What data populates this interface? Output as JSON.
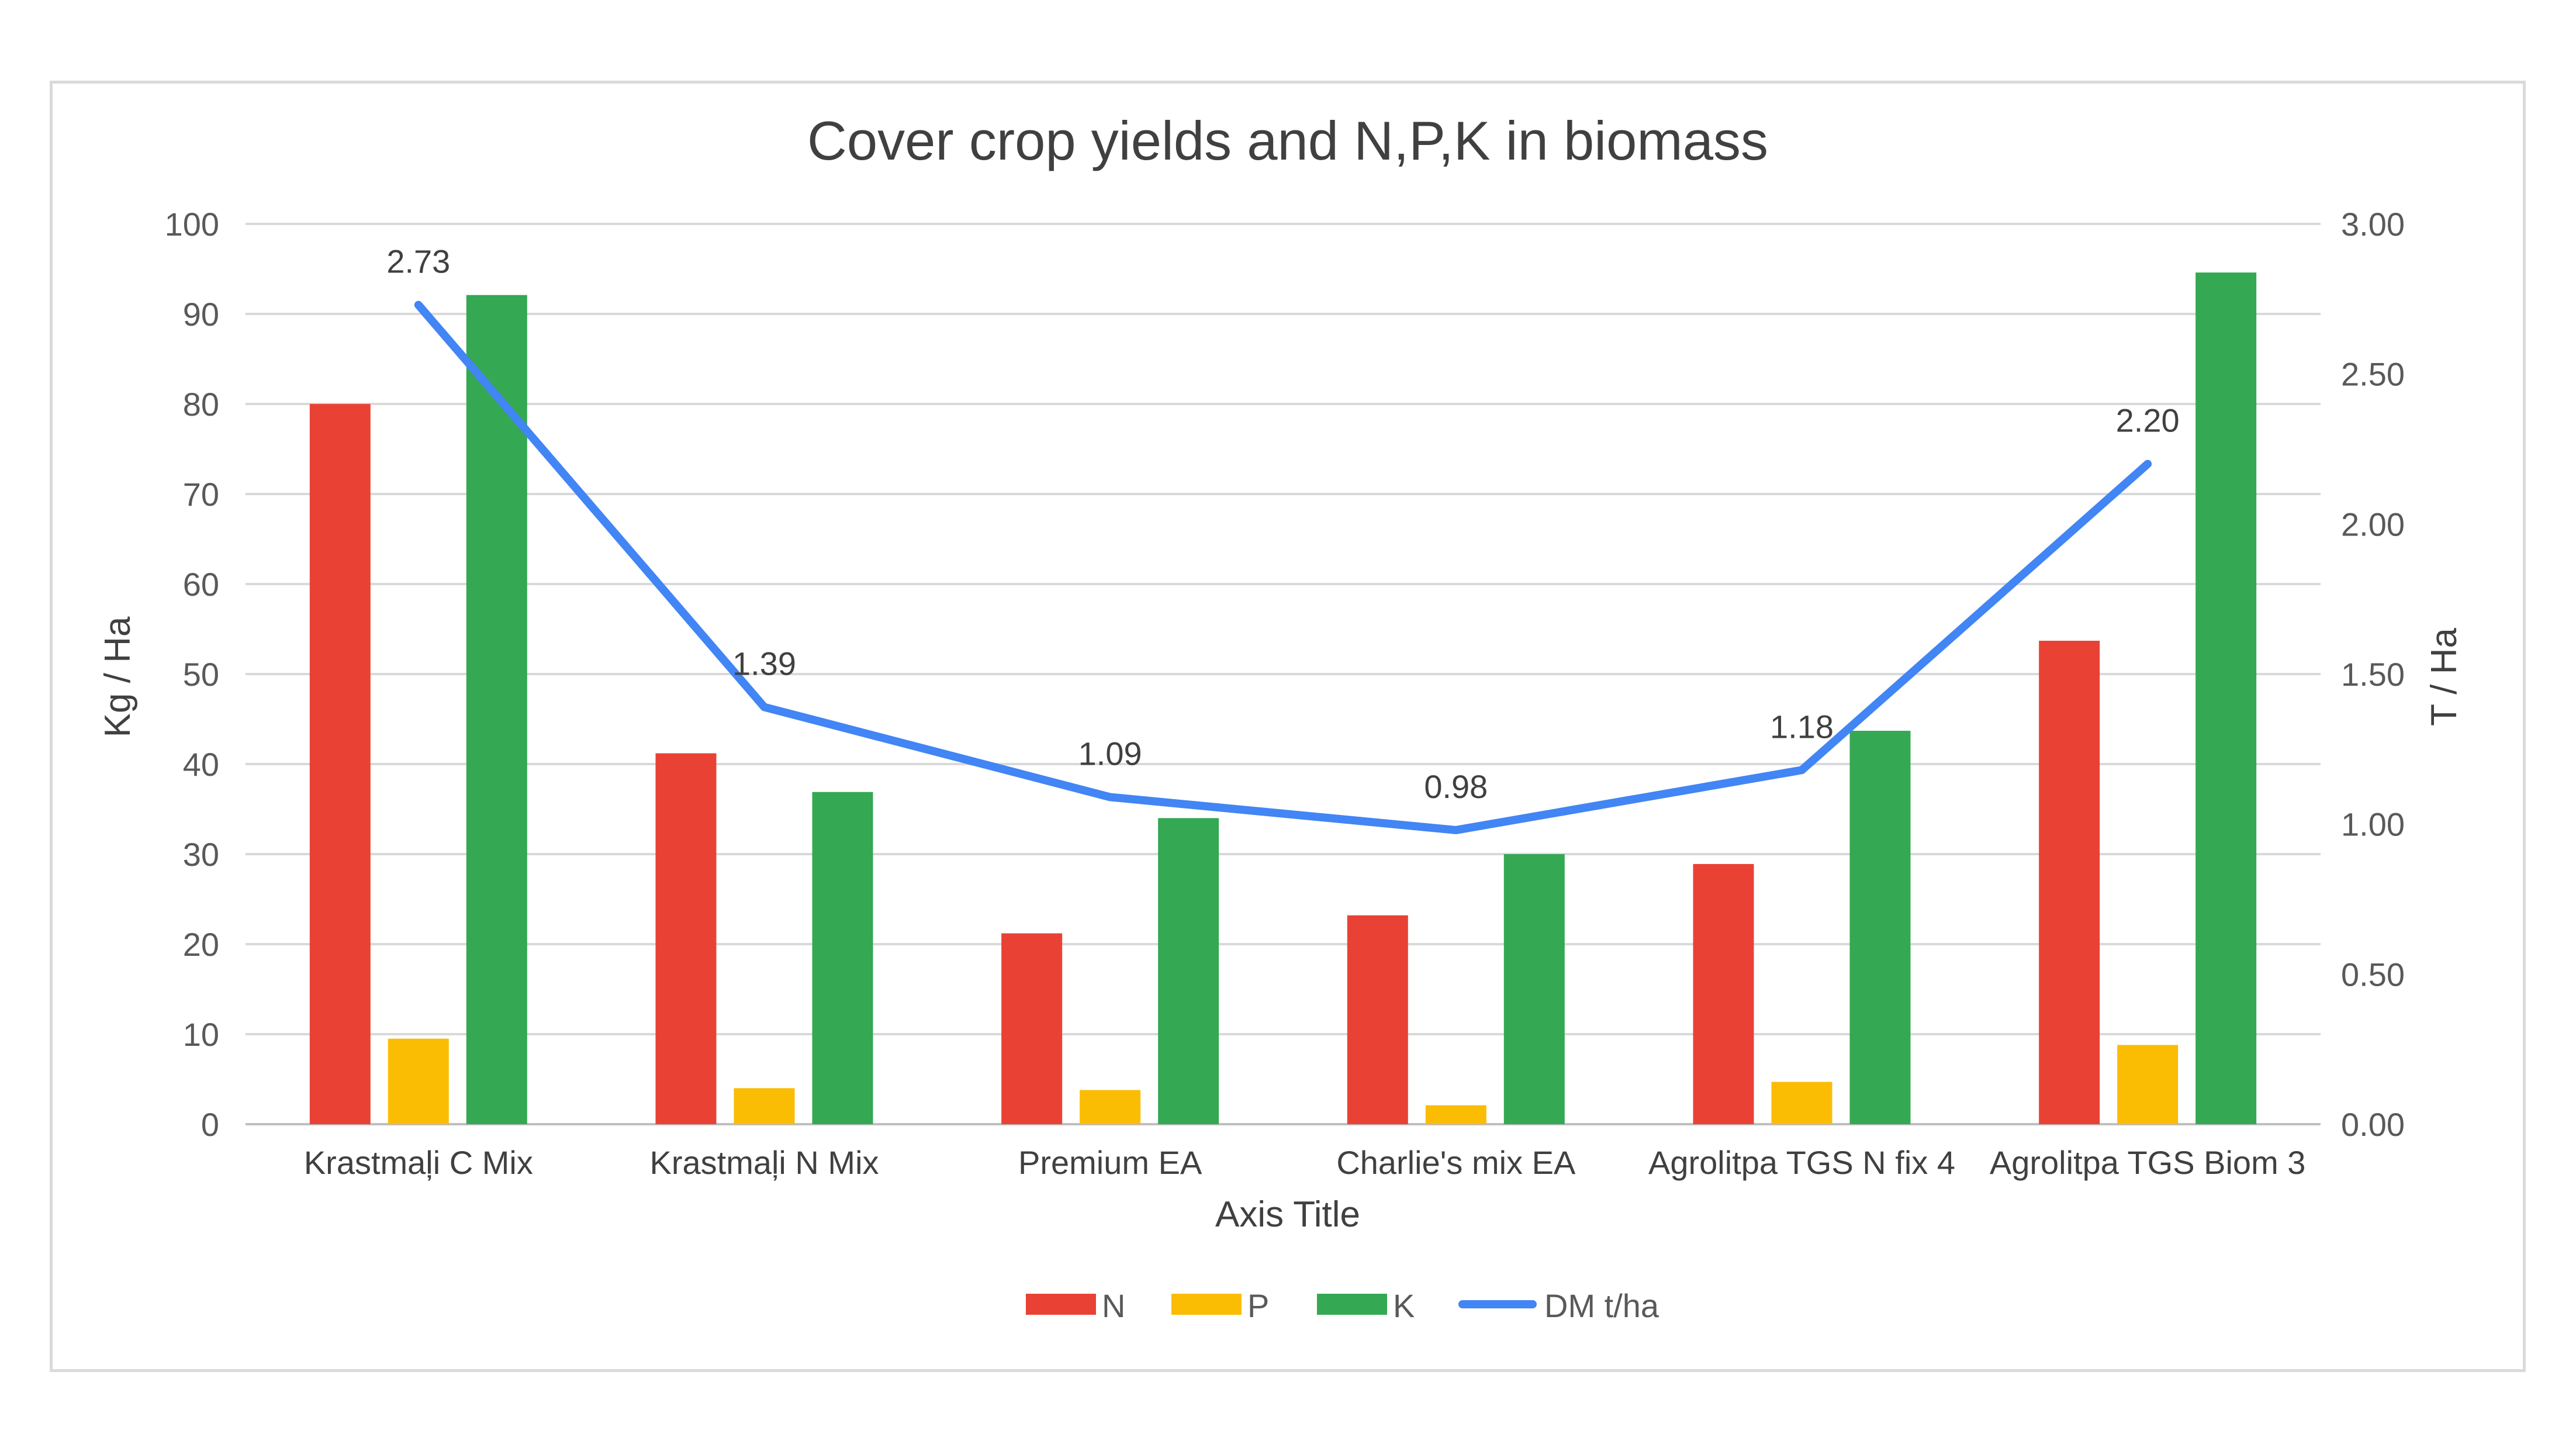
{
  "chart_data": {
    "type": "bar",
    "title": "Cover crop yields and N,P,K in biomass",
    "xlabel": "Axis Title",
    "ylabel": "Kg / Ha",
    "y2label": "T / Ha",
    "ylim": [
      0,
      100
    ],
    "y2lim": [
      0,
      3
    ],
    "yticks": [
      "0",
      "10",
      "20",
      "30",
      "40",
      "50",
      "60",
      "70",
      "80",
      "90",
      "100"
    ],
    "y2ticks": [
      "0.00",
      "0.50",
      "1.00",
      "1.50",
      "2.00",
      "2.50",
      "3.00"
    ],
    "grid": true,
    "legend_position": "bottom",
    "categories": [
      "Krastmaļi C Mix",
      "Krastmaļi N Mix",
      "Premium EA",
      "Charlie's mix EA",
      "Agrolitpa TGS N fix 4",
      "Agrolitpa TGS Biom 3"
    ],
    "series": [
      {
        "name": "N",
        "type": "bar",
        "axis": "left",
        "color": "#E94235",
        "values": [
          80,
          41.2,
          21.2,
          23.2,
          28.9,
          53.7
        ]
      },
      {
        "name": "P",
        "type": "bar",
        "axis": "left",
        "color": "#FBBC04",
        "values": [
          9.5,
          4,
          3.8,
          2.1,
          4.7,
          8.8
        ]
      },
      {
        "name": "K",
        "type": "bar",
        "axis": "left",
        "color": "#34A853",
        "values": [
          92.1,
          36.9,
          34,
          30,
          43.7,
          94.6
        ]
      },
      {
        "name": "DM t/ha",
        "type": "line",
        "axis": "right",
        "color": "#4285F4",
        "values": [
          2.73,
          1.39,
          1.09,
          0.98,
          1.18,
          2.2
        ],
        "labels": [
          "2.73",
          "1.39",
          "1.09",
          "0.98",
          "1.18",
          "2.20"
        ]
      }
    ]
  }
}
